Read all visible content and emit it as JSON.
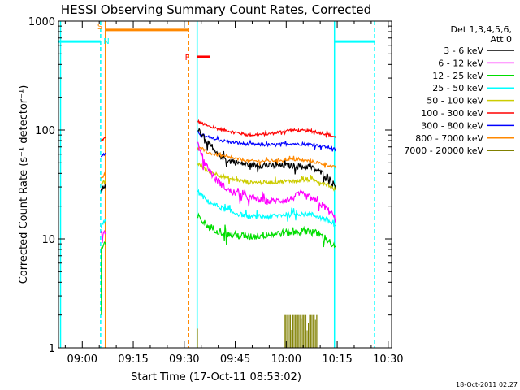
{
  "chart_data": {
    "type": "line",
    "title": "HESSI Observing Summary Count Rates, Corrected",
    "xlabel": "Start Time (17-Oct-11 08:53:02)",
    "ylabel": "Corrected Count Rate (s⁻¹ detector⁻¹)",
    "yscale": "log",
    "ylim": [
      1,
      1000
    ],
    "y_ticks": [
      {
        "value": 1,
        "label": "1"
      },
      {
        "value": 10,
        "label": "10"
      },
      {
        "value": 100,
        "label": "100"
      },
      {
        "value": 1000,
        "label": "1000"
      }
    ],
    "xlim_minutes": [
      0,
      98
    ],
    "x_ticks": [
      {
        "minute": 7,
        "label": "09:00"
      },
      {
        "minute": 22,
        "label": "09:15"
      },
      {
        "minute": 37,
        "label": "09:30"
      },
      {
        "minute": 52,
        "label": "09:45"
      },
      {
        "minute": 67,
        "label": "10:00"
      },
      {
        "minute": 82,
        "label": "10:15"
      },
      {
        "minute": 97,
        "label": "10:30"
      }
    ],
    "legend": {
      "position": "right",
      "header": [
        "Det 1,3,4,5,6,",
        "Att 0"
      ],
      "entries": [
        {
          "label": "3 - 6 keV",
          "color": "#000000"
        },
        {
          "label": "6 - 12 keV",
          "color": "#ff00ff"
        },
        {
          "label": "12 - 25 keV",
          "color": "#00dd00"
        },
        {
          "label": "25 - 50 keV",
          "color": "#00ffff"
        },
        {
          "label": "50 - 100 keV",
          "color": "#cccc00"
        },
        {
          "label": "100 - 300 keV",
          "color": "#ff0000"
        },
        {
          "label": "300 - 800 keV",
          "color": "#0000ff"
        },
        {
          "label": "800 - 7000 keV",
          "color": "#ff8800"
        },
        {
          "label": "7000 - 20000 keV",
          "color": "#808000"
        }
      ]
    },
    "series": [
      {
        "color": "#ff0000",
        "noise": 0.03,
        "segments": [
          {
            "x": [
              12.5,
              14
            ],
            "y": [
              80,
              85
            ]
          },
          {
            "x": [
              41,
              44,
              50,
              56,
              62,
              68,
              74,
              79,
              81.7
            ],
            "y": [
              120,
              108,
              98,
              90,
              92,
              100,
              98,
              92,
              85
            ]
          }
        ]
      },
      {
        "color": "#0000ff",
        "noise": 0.03,
        "segments": [
          {
            "x": [
              12.5,
              14
            ],
            "y": [
              58,
              60
            ]
          },
          {
            "x": [
              41,
              44,
              50,
              56,
              62,
              68,
              74,
              79,
              81.7
            ],
            "y": [
              95,
              85,
              78,
              74,
              73,
              75,
              74,
              70,
              66
            ]
          }
        ]
      },
      {
        "color": "#000000",
        "noise": 0.06,
        "segments": [
          {
            "x": [
              12.5,
              14
            ],
            "y": [
              28,
              30
            ]
          },
          {
            "x": [
              41,
              43,
              46,
              50,
              56,
              62,
              68,
              74,
              79,
              81.7
            ],
            "y": [
              105,
              85,
              62,
              52,
              48,
              47,
              47,
              46,
              38,
              30
            ]
          }
        ]
      },
      {
        "color": "#ff8800",
        "noise": 0.03,
        "segments": [
          {
            "x": [
              12.5,
              14
            ],
            "y": [
              37,
              38
            ]
          },
          {
            "x": [
              41,
              44,
              50,
              56,
              62,
              68,
              74,
              79,
              81.7
            ],
            "y": [
              70,
              62,
              56,
              52,
              52,
              54,
              52,
              48,
              45
            ]
          }
        ]
      },
      {
        "color": "#cccc00",
        "noise": 0.04,
        "segments": [
          {
            "x": [
              12.5,
              14
            ],
            "y": [
              32,
              34
            ]
          },
          {
            "x": [
              41,
              44,
              50,
              56,
              62,
              68,
              74,
              79,
              81.7
            ],
            "y": [
              50,
              42,
              36,
              33,
              33,
              34,
              35,
              32,
              28
            ]
          }
        ]
      },
      {
        "color": "#ff00ff",
        "noise": 0.07,
        "segments": [
          {
            "x": [
              12.5,
              14
            ],
            "y": [
              11,
              12
            ]
          },
          {
            "x": [
              41,
              43,
              46,
              50,
              56,
              62,
              68,
              71,
              74,
              79,
              81.7
            ],
            "y": [
              75,
              50,
              36,
              28,
              24,
              22,
              23,
              26,
              24,
              19,
              15
            ]
          }
        ]
      },
      {
        "color": "#00ffff",
        "noise": 0.05,
        "segments": [
          {
            "x": [
              12.5,
              14
            ],
            "y": [
              13,
              15
            ]
          },
          {
            "x": [
              41,
              44,
              50,
              56,
              62,
              68,
              74,
              79,
              81.7
            ],
            "y": [
              27,
              22,
              18,
              16,
              16,
              17,
              17,
              15,
              13
            ]
          }
        ]
      },
      {
        "color": "#00dd00",
        "noise": 0.08,
        "segments": [
          {
            "x": [
              12.5,
              14
            ],
            "y": [
              8,
              9
            ]
          },
          {
            "x": [
              41,
              44,
              50,
              56,
              62,
              68,
              74,
              79,
              81.7
            ],
            "y": [
              16,
              13,
              11,
              10.5,
              11,
              11.5,
              12,
              10,
              8
            ]
          }
        ]
      }
    ],
    "high_energy_bursts": {
      "color": "#808000",
      "x_range": [
        66.5,
        76.5
      ],
      "ylim": [
        1,
        2
      ]
    },
    "time_markers": [
      {
        "minute": 0.6,
        "color": "#00ffff",
        "style": "solid"
      },
      {
        "minute": 12.4,
        "color": "#00ffff",
        "style": "dashed"
      },
      {
        "minute": 13.8,
        "color": "#ff8800",
        "style": "solid"
      },
      {
        "minute": 38.3,
        "color": "#ff8800",
        "style": "dashed"
      },
      {
        "minute": 40.8,
        "color": "#00ffff",
        "style": "solid"
      },
      {
        "minute": 81.2,
        "color": "#00ffff",
        "style": "solid"
      },
      {
        "minute": 93,
        "color": "#00ffff",
        "style": "dashed"
      }
    ],
    "top_bars": [
      {
        "x": [
          0,
          12.4
        ],
        "y": 650,
        "color": "#00ffff"
      },
      {
        "x": [
          81.2,
          93
        ],
        "y": 650,
        "color": "#00ffff"
      },
      {
        "x": [
          13.8,
          38.3
        ],
        "y": 830,
        "color": "#ff8800"
      },
      {
        "x": [
          40.8,
          44.5
        ],
        "y": 470,
        "color": "#ff0000"
      }
    ],
    "flags": [
      {
        "text": "S",
        "minute": 12.2,
        "y": 900,
        "color": "#ff8800"
      },
      {
        "text": "N",
        "minute": 14.1,
        "y": 660,
        "color": "#00ffff"
      },
      {
        "text": "F",
        "minute": 37.9,
        "y": 470,
        "color": "#ff0000"
      }
    ],
    "footer_date": "18-Oct-2011 02:27"
  }
}
